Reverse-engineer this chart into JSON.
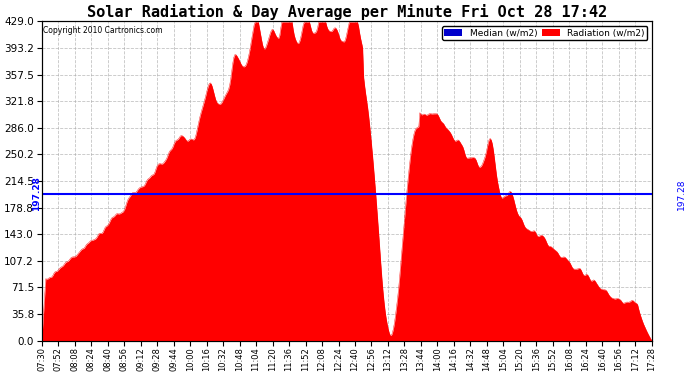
{
  "title": "Solar Radiation & Day Average per Minute Fri Oct 28 17:42",
  "copyright": "Copyright 2010 Cartronics.com",
  "median_value": 197.28,
  "median_label": "197.28",
  "y_min": 0.0,
  "y_max": 429.0,
  "y_ticks": [
    0.0,
    35.8,
    71.5,
    107.2,
    143.0,
    178.8,
    214.5,
    250.2,
    286.0,
    321.8,
    357.5,
    393.2,
    429.0
  ],
  "fill_color": "#FF0000",
  "line_color": "#0000FF",
  "background_color": "#FFFFFF",
  "grid_color": "#AAAAAA",
  "title_fontsize": 11,
  "legend_median_color": "#0000CC",
  "legend_radiation_color": "#FF0000",
  "x_tick_labels": [
    "07:30",
    "07:52",
    "08:08",
    "08:24",
    "08:40",
    "08:56",
    "09:12",
    "09:28",
    "09:44",
    "10:00",
    "10:16",
    "10:32",
    "10:48",
    "11:04",
    "11:20",
    "11:36",
    "11:52",
    "12:08",
    "12:24",
    "12:40",
    "12:56",
    "13:12",
    "13:28",
    "13:44",
    "14:00",
    "14:16",
    "14:32",
    "14:48",
    "15:04",
    "15:20",
    "15:36",
    "15:52",
    "16:08",
    "16:24",
    "16:40",
    "16:56",
    "17:12",
    "17:28"
  ]
}
